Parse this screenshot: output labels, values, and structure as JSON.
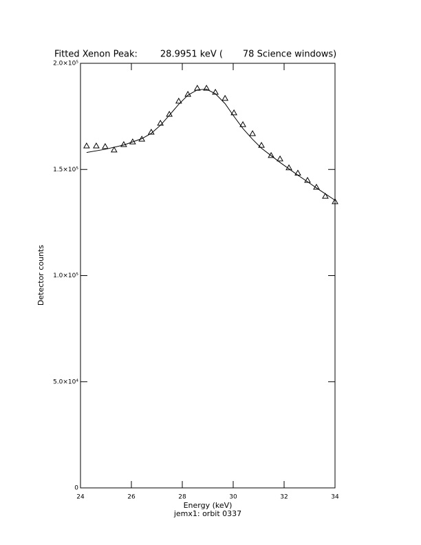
{
  "chart_data": {
    "type": "scatter",
    "title": "Fitted Xenon Peak:        28.9951 keV (       78 Science windows)",
    "x_label": "Energy (keV)",
    "y_label": "Detector counts",
    "footnote": "jemx1: orbit 0337",
    "xlim": [
      24,
      34
    ],
    "xticks": [
      24,
      26,
      28,
      30,
      32,
      34
    ],
    "ylim": [
      0,
      200000
    ],
    "yticks": [
      0,
      {
        "value": 50000,
        "label": "5.0×10⁴"
      },
      {
        "value": 100000,
        "label": "1.0×10⁵"
      },
      {
        "value": 150000,
        "label": "1.5×10⁵"
      },
      {
        "value": 200000,
        "label": "2.0×10⁵"
      }
    ],
    "series": [
      {
        "marker": "triangle",
        "color": "#000000",
        "x": [
          24.24,
          24.62,
          24.97,
          25.32,
          25.7,
          26.05,
          26.41,
          26.78,
          27.14,
          27.49,
          27.86,
          28.22,
          28.59,
          28.95,
          29.3,
          29.68,
          30.03,
          30.38,
          30.76,
          31.11,
          31.49,
          31.84,
          32.19,
          32.54,
          32.92,
          33.27,
          33.62,
          34.0
        ],
        "values": [
          161100,
          161100,
          160800,
          159200,
          161750,
          163000,
          164300,
          167600,
          171800,
          176000,
          182200,
          185400,
          188300,
          188300,
          186400,
          183500,
          176700,
          171150,
          166900,
          161400,
          156600,
          155000,
          150800,
          148300,
          144900,
          141650,
          137400,
          134850
        ]
      },
      {
        "marker": "line",
        "color": "#000000",
        "x": [
          24.24,
          24.97,
          25.7,
          26.41,
          26.78,
          27.14,
          27.49,
          27.86,
          28.22,
          28.59,
          28.95,
          29.3,
          29.68,
          30.03,
          30.38,
          30.76,
          31.11,
          31.49,
          31.84,
          32.19,
          32.54,
          32.92,
          33.27,
          33.62,
          34.0
        ],
        "values": [
          158000,
          159500,
          161500,
          164500,
          167000,
          170800,
          175500,
          180700,
          185000,
          187500,
          187800,
          185700,
          181000,
          175000,
          169300,
          164200,
          160000,
          156500,
          153300,
          150300,
          147300,
          144200,
          141300,
          138500,
          135500
        ]
      }
    ]
  }
}
